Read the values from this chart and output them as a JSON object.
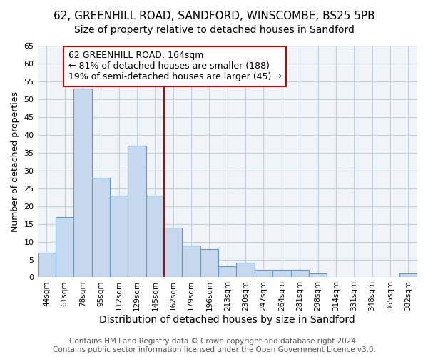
{
  "title": "62, GREENHILL ROAD, SANDFORD, WINSCOMBE, BS25 5PB",
  "subtitle": "Size of property relative to detached houses in Sandford",
  "xlabel": "Distribution of detached houses by size in Sandford",
  "ylabel": "Number of detached properties",
  "bin_labels": [
    "44sqm",
    "61sqm",
    "78sqm",
    "95sqm",
    "112sqm",
    "129sqm",
    "145sqm",
    "162sqm",
    "179sqm",
    "196sqm",
    "213sqm",
    "230sqm",
    "247sqm",
    "264sqm",
    "281sqm",
    "298sqm",
    "314sqm",
    "331sqm",
    "348sqm",
    "365sqm",
    "382sqm"
  ],
  "bin_values": [
    7,
    17,
    53,
    28,
    23,
    37,
    23,
    14,
    9,
    8,
    3,
    4,
    2,
    2,
    2,
    1,
    0,
    0,
    0,
    0,
    1
  ],
  "bar_color": "#c5d8ed",
  "bar_edge_color": "#5b9bd5",
  "vline_x_index": 7,
  "vline_color": "#cc0000",
  "annotation_text": "62 GREENHILL ROAD: 164sqm\n← 81% of detached houses are smaller (188)\n19% of semi-detached houses are larger (45) →",
  "annotation_box_color": "#ffffff",
  "annotation_box_edge_color": "#cc0000",
  "ylim": [
    0,
    65
  ],
  "yticks": [
    0,
    5,
    10,
    15,
    20,
    25,
    30,
    35,
    40,
    45,
    50,
    55,
    60,
    65
  ],
  "grid_color": "#c0d0e0",
  "background_color": "#f0f4f8",
  "footer_text": "Contains HM Land Registry data © Crown copyright and database right 2024.\nContains public sector information licensed under the Open Government Licence v3.0.",
  "title_fontsize": 11,
  "subtitle_fontsize": 10,
  "xlabel_fontsize": 10,
  "ylabel_fontsize": 9,
  "annotation_fontsize": 9,
  "footer_fontsize": 7.5
}
